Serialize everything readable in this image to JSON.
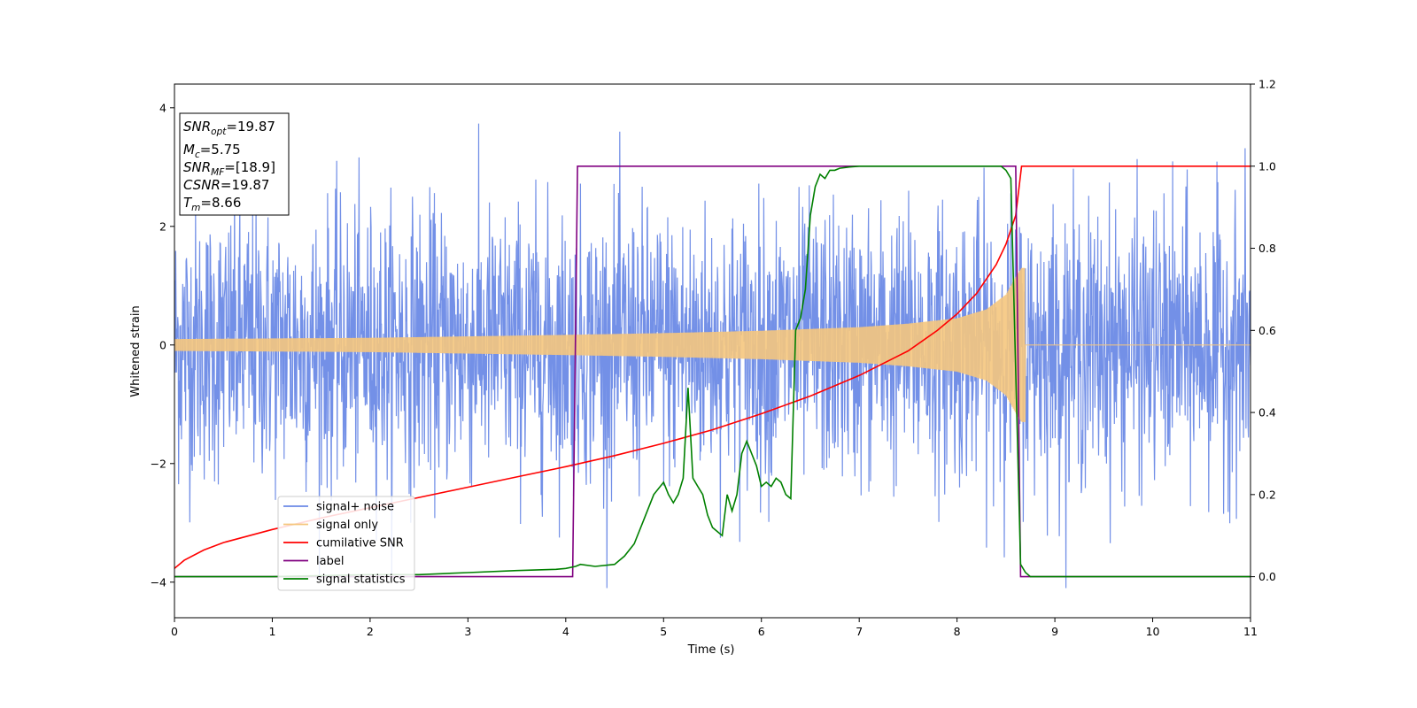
{
  "chart_data": {
    "type": "line",
    "title": "",
    "xlabel": "Time (s)",
    "ylabel": "Whitened strain",
    "xlim": [
      0,
      11
    ],
    "ylim_left": [
      -4.6,
      4.4
    ],
    "ylim_right": [
      -0.1,
      1.2
    ],
    "x_ticks": [
      "0",
      "1",
      "2",
      "3",
      "4",
      "5",
      "6",
      "7",
      "8",
      "9",
      "10",
      "11"
    ],
    "y_left_ticks": [
      "−4",
      "−2",
      "0",
      "2",
      "4"
    ],
    "y_right_ticks": [
      "0.0",
      "0.2",
      "0.4",
      "0.6",
      "0.8",
      "1.0",
      "1.2"
    ],
    "grid": false,
    "legend_position": "lower-left",
    "series": [
      {
        "name": "signal+ noise",
        "axis": "left",
        "color": "#6b8ae6",
        "description_values": {
          "std": 1.2,
          "min": -4.1,
          "max": 4.0,
          "x_range": [
            0,
            11
          ]
        }
      },
      {
        "name": "signal only",
        "axis": "left",
        "color": "#f5c77e",
        "envelope": {
          "x": [
            0,
            2,
            4,
            5,
            6,
            7,
            7.5,
            8,
            8.3,
            8.5,
            8.6,
            8.66
          ],
          "amplitude": [
            0.1,
            0.12,
            0.17,
            0.2,
            0.24,
            0.3,
            0.36,
            0.45,
            0.6,
            0.85,
            1.15,
            1.3
          ]
        },
        "zero_after": 8.7
      },
      {
        "name": "cumilative SNR",
        "axis": "right",
        "color": "#ff0000",
        "x": [
          0,
          0.1,
          0.3,
          0.5,
          1,
          1.5,
          2,
          2.5,
          3,
          3.5,
          4,
          4.5,
          5,
          5.5,
          6,
          6.5,
          7,
          7.5,
          7.8,
          8,
          8.2,
          8.4,
          8.5,
          8.6,
          8.66,
          11
        ],
        "y": [
          0.02,
          0.04,
          0.065,
          0.083,
          0.115,
          0.143,
          0.168,
          0.193,
          0.218,
          0.243,
          0.268,
          0.295,
          0.325,
          0.358,
          0.397,
          0.44,
          0.49,
          0.55,
          0.6,
          0.64,
          0.69,
          0.76,
          0.81,
          0.88,
          1.0,
          1.0
        ]
      },
      {
        "name": "label",
        "axis": "right",
        "color": "#800080",
        "x": [
          0,
          4.07,
          4.12,
          8.6,
          8.65,
          11
        ],
        "y": [
          0,
          0,
          1,
          1,
          0,
          0
        ]
      },
      {
        "name": "signal statistics",
        "axis": "right",
        "color": "#008000",
        "x": [
          0,
          1,
          2,
          2.5,
          3,
          3.5,
          3.9,
          4.0,
          4.1,
          4.15,
          4.3,
          4.5,
          4.6,
          4.7,
          4.8,
          4.9,
          5.0,
          5.05,
          5.1,
          5.15,
          5.2,
          5.25,
          5.3,
          5.35,
          5.4,
          5.45,
          5.5,
          5.55,
          5.6,
          5.65,
          5.7,
          5.75,
          5.8,
          5.85,
          5.9,
          5.95,
          6.0,
          6.05,
          6.1,
          6.15,
          6.2,
          6.25,
          6.3,
          6.35,
          6.4,
          6.45,
          6.5,
          6.55,
          6.6,
          6.65,
          6.7,
          6.75,
          6.8,
          6.9,
          7.0,
          7.5,
          8.0,
          8.4,
          8.45,
          8.5,
          8.55,
          8.6,
          8.65,
          8.7,
          8.75,
          11
        ],
        "y": [
          0.0,
          0.0,
          0.005,
          0.005,
          0.01,
          0.015,
          0.018,
          0.02,
          0.025,
          0.03,
          0.025,
          0.03,
          0.05,
          0.08,
          0.14,
          0.2,
          0.23,
          0.2,
          0.18,
          0.2,
          0.24,
          0.46,
          0.24,
          0.22,
          0.2,
          0.15,
          0.12,
          0.11,
          0.1,
          0.2,
          0.16,
          0.2,
          0.3,
          0.33,
          0.3,
          0.27,
          0.22,
          0.23,
          0.22,
          0.24,
          0.23,
          0.2,
          0.19,
          0.6,
          0.63,
          0.7,
          0.88,
          0.95,
          0.98,
          0.97,
          0.99,
          0.99,
          0.995,
          0.998,
          1.0,
          1.0,
          1.0,
          1.0,
          1.0,
          0.99,
          0.97,
          0.5,
          0.03,
          0.01,
          0.0,
          0.0
        ]
      }
    ],
    "legend": [
      "signal+ noise",
      "signal only",
      "cumilative SNR",
      "label",
      "signal statistics"
    ]
  },
  "info_box": {
    "snr_opt_label": "SNR",
    "snr_opt_sub": "opt",
    "snr_opt_value": "=19.87",
    "mc_label": "M",
    "mc_sub": "c",
    "mc_value": "=5.75",
    "snr_mf_label": "SNR",
    "snr_mf_sub": "MF",
    "snr_mf_value": "=[18.9]",
    "csnr_label": "CSNR",
    "csnr_value": "=19.87",
    "tm_label": "T",
    "tm_sub": "m",
    "tm_value": "=8.66"
  }
}
